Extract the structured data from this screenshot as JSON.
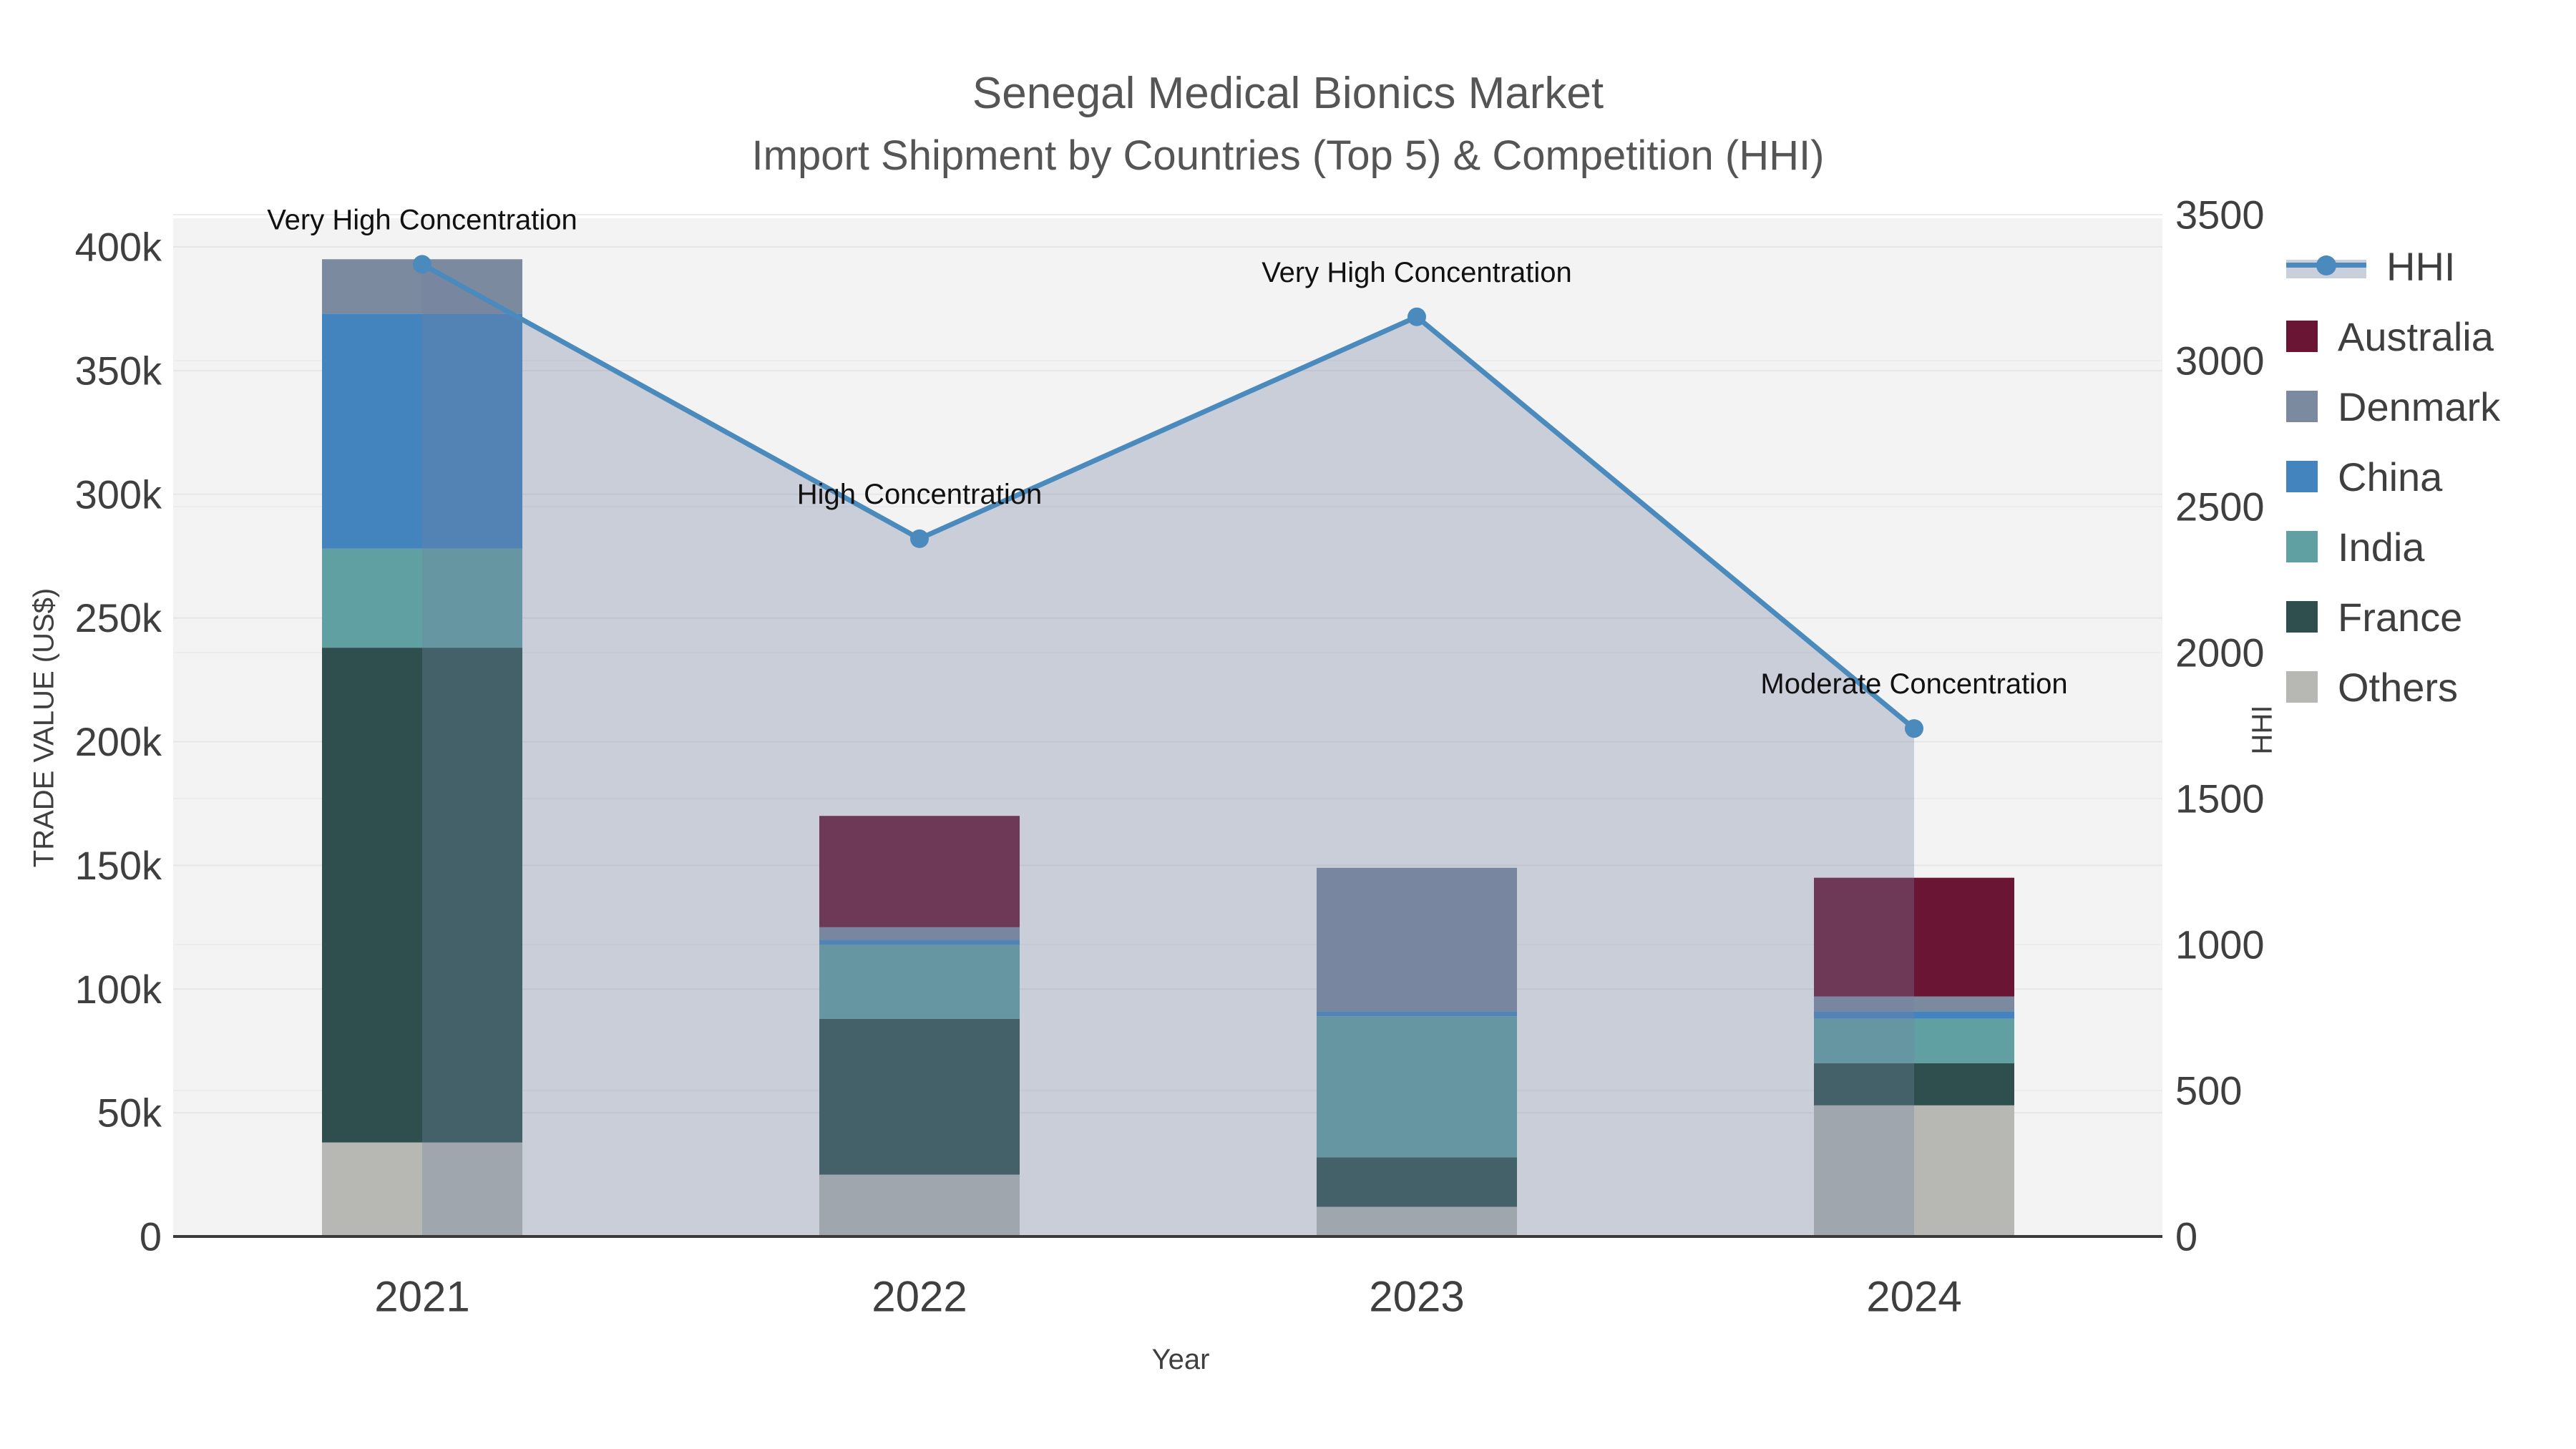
{
  "title": {
    "line1": "Senegal Medical Bionics Market",
    "line2": "Import Shipment by Countries (Top 5) & Competition (HHI)"
  },
  "axes": {
    "left_title": "TRADE VALUE (US$)",
    "bottom_title": "Year",
    "right_title": "HHI"
  },
  "legend": {
    "items": [
      {
        "label": "HHI",
        "type": "line",
        "color": "#4a8abd"
      },
      {
        "label": "Australia",
        "type": "square",
        "color": "#6a1533"
      },
      {
        "label": "Denmark",
        "type": "square",
        "color": "#7b8a9e"
      },
      {
        "label": "China",
        "type": "square",
        "color": "#4484be"
      },
      {
        "label": "India",
        "type": "square",
        "color": "#60a0a2"
      },
      {
        "label": "France",
        "type": "square",
        "color": "#2e4f4e"
      },
      {
        "label": "Others",
        "type": "square",
        "color": "#b7b8b4"
      }
    ]
  },
  "colors": {
    "plot_bg": "#f3f3f3",
    "grid_left": "#e6e6e6",
    "grid_right": "#ececec",
    "axis_line": "#3a3a3a",
    "tick_text": "#3f3f3f",
    "annotation_text": "#111111",
    "hhi_line": "#4a8abd",
    "hhi_fill": "rgba(115,130,160,0.33)"
  },
  "chart_data": {
    "type": "combo: stacked bar + line with area fill",
    "title": "Senegal Medical Bionics Market — Import Shipment by Countries (Top 5) & Competition (HHI)",
    "categories": [
      "2021",
      "2022",
      "2023",
      "2024"
    ],
    "bar_stack_order_bottom_to_top": [
      "Others",
      "France",
      "India",
      "China",
      "Denmark",
      "Australia"
    ],
    "series": [
      {
        "name": "Others",
        "color": "#b7b8b4",
        "values": [
          38000,
          25000,
          12000,
          53000
        ]
      },
      {
        "name": "France",
        "color": "#2e4f4e",
        "values": [
          200000,
          63000,
          20000,
          17000
        ]
      },
      {
        "name": "India",
        "color": "#60a0a2",
        "values": [
          40000,
          30000,
          57000,
          18000
        ]
      },
      {
        "name": "China",
        "color": "#4484be",
        "values": [
          95000,
          2000,
          2000,
          3000
        ]
      },
      {
        "name": "Denmark",
        "color": "#7b8a9e",
        "values": [
          22000,
          5000,
          58000,
          6000
        ]
      },
      {
        "name": "Australia",
        "color": "#6a1533",
        "values": [
          0,
          45000,
          0,
          48000
        ]
      }
    ],
    "line_series": {
      "name": "HHI",
      "values": [
        3330,
        2390,
        3150,
        1740
      ],
      "annotations": [
        "Very High Concentration",
        "High Concentration",
        "Very High Concentration",
        "Moderate Concentration"
      ]
    },
    "xlabel": "Year",
    "ylabel": "TRADE VALUE (US$)",
    "y2label": "HHI",
    "ylim": [
      0,
      400000
    ],
    "y2lim": [
      0,
      3500
    ],
    "y_ticks": [
      "0",
      "50k",
      "100k",
      "150k",
      "200k",
      "250k",
      "300k",
      "350k",
      "400k"
    ],
    "y_tick_values": [
      0,
      50000,
      100000,
      150000,
      200000,
      250000,
      300000,
      350000,
      400000
    ],
    "y2_ticks": [
      "0",
      "500",
      "1000",
      "1500",
      "2000",
      "2500",
      "3000",
      "3500"
    ],
    "y2_tick_values": [
      0,
      500,
      1000,
      1500,
      2000,
      2500,
      3000,
      3500
    ],
    "grid": true,
    "legend_position": "right"
  }
}
